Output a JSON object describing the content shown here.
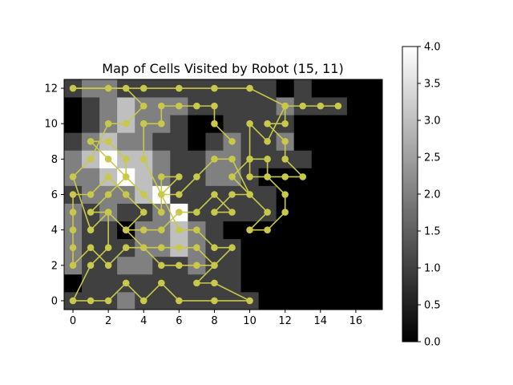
{
  "chart_data": {
    "type": "heatmap",
    "title": "Map of Cells Visited by Robot (15, 11)",
    "xlabel": "",
    "ylabel": "",
    "grid": false,
    "legend": "none",
    "origin": "lower",
    "xlim": [
      -0.5,
      17.5
    ],
    "ylim": [
      -0.5,
      12.5
    ],
    "xticks": [
      0,
      2,
      4,
      6,
      8,
      10,
      12,
      14,
      16
    ],
    "yticks": [
      0,
      2,
      4,
      6,
      8,
      10,
      12
    ],
    "colormap": "gray",
    "colorbar": {
      "range": [
        0.0,
        4.0
      ],
      "ticks": [
        "0.0",
        "0.5",
        "1.0",
        "1.5",
        "2.0",
        "2.5",
        "3.0",
        "3.5",
        "4.0"
      ],
      "position": "right"
    },
    "grid_values": [
      [
        1,
        1,
        1,
        2,
        1,
        1,
        1,
        1,
        1,
        1,
        1,
        0,
        0,
        0,
        0,
        0,
        0,
        0
      ],
      [
        0,
        1,
        1,
        1,
        1,
        1,
        1,
        1,
        1,
        1,
        0,
        0,
        0,
        0,
        0,
        0,
        0,
        0
      ],
      [
        2,
        1,
        1,
        2,
        2,
        1,
        1,
        2,
        1,
        1,
        0,
        0,
        0,
        0,
        0,
        0,
        0,
        0
      ],
      [
        2,
        1,
        1,
        1,
        2,
        2,
        3,
        2,
        1,
        1,
        0,
        0,
        0,
        0,
        0,
        0,
        0,
        0
      ],
      [
        2,
        1,
        1,
        0,
        2,
        2,
        3,
        2,
        1,
        0,
        0,
        0,
        0,
        0,
        0,
        0,
        0,
        0
      ],
      [
        2,
        1,
        2,
        1,
        1,
        2,
        4,
        1,
        1,
        1,
        1,
        1,
        0,
        0,
        0,
        0,
        0,
        0
      ],
      [
        1,
        2,
        2,
        2,
        3,
        4,
        1,
        1,
        1,
        1,
        1,
        1,
        0,
        0,
        0,
        0,
        0,
        0
      ],
      [
        2,
        2,
        3,
        4,
        3,
        2,
        1,
        1,
        2,
        2,
        1,
        0,
        0,
        0,
        0,
        0,
        0,
        0
      ],
      [
        2,
        3,
        4,
        3,
        3,
        2,
        1,
        1,
        2,
        2,
        1,
        1,
        1,
        1,
        0,
        0,
        0,
        0
      ],
      [
        1,
        2,
        3,
        2,
        2,
        1,
        1,
        0,
        1,
        2,
        1,
        1,
        2,
        0,
        0,
        0,
        0,
        0
      ],
      [
        0,
        1,
        2,
        3,
        2,
        2,
        1,
        0,
        0,
        1,
        1,
        1,
        1,
        0,
        0,
        0,
        0,
        0
      ],
      [
        0,
        1,
        2,
        3,
        2,
        2,
        2,
        1,
        1,
        1,
        1,
        1,
        2,
        1,
        1,
        1,
        0,
        0
      ],
      [
        1,
        2,
        2,
        1,
        1,
        1,
        1,
        1,
        1,
        1,
        1,
        1,
        0,
        1,
        0,
        0,
        0,
        0
      ]
    ],
    "path_color": "#c8c84a",
    "path_points": [
      [
        15,
        11
      ],
      [
        14,
        11
      ],
      [
        13,
        11
      ],
      [
        12,
        11
      ],
      [
        12,
        10
      ],
      [
        11,
        10
      ],
      [
        12,
        9
      ],
      [
        12,
        8
      ],
      [
        13,
        7
      ],
      [
        12,
        7
      ],
      [
        11,
        7
      ],
      [
        10,
        7
      ],
      [
        10,
        8
      ],
      [
        9,
        7
      ],
      [
        10,
        6
      ],
      [
        9,
        6
      ],
      [
        8,
        5
      ],
      [
        9,
        5
      ],
      [
        8,
        6
      ],
      [
        7,
        5
      ],
      [
        6,
        5
      ],
      [
        5,
        4
      ],
      [
        4,
        4
      ],
      [
        3,
        4
      ],
      [
        4,
        5
      ],
      [
        3,
        6
      ],
      [
        2,
        7
      ],
      [
        1,
        6
      ],
      [
        0,
        6
      ],
      [
        0,
        5
      ],
      [
        0,
        4
      ],
      [
        0,
        3
      ],
      [
        0,
        2
      ],
      [
        1,
        3
      ],
      [
        2,
        2
      ],
      [
        3,
        3
      ],
      [
        4,
        3
      ],
      [
        5,
        3
      ],
      [
        6,
        3
      ],
      [
        7,
        3
      ],
      [
        8,
        2
      ],
      [
        7,
        1
      ],
      [
        8,
        1
      ],
      [
        10,
        0
      ],
      [
        8,
        0
      ],
      [
        6,
        0
      ],
      [
        5,
        1
      ],
      [
        4,
        0
      ],
      [
        3,
        1
      ],
      [
        2,
        0
      ],
      [
        1,
        0
      ],
      [
        0,
        0
      ],
      [
        1,
        2
      ],
      [
        2,
        3
      ],
      [
        2,
        5
      ],
      [
        1,
        5
      ],
      [
        2,
        6
      ],
      [
        3,
        7
      ],
      [
        3,
        8
      ],
      [
        2,
        9
      ],
      [
        1,
        9
      ],
      [
        2,
        8
      ],
      [
        3,
        7
      ],
      [
        4,
        6
      ],
      [
        5,
        5
      ],
      [
        5,
        7
      ],
      [
        6,
        7
      ],
      [
        5,
        6
      ],
      [
        6,
        4
      ],
      [
        7,
        4
      ],
      [
        8,
        3
      ],
      [
        9,
        3
      ],
      [
        8,
        2
      ],
      [
        7,
        2
      ],
      [
        6,
        2
      ],
      [
        5,
        2
      ],
      [
        4,
        3
      ],
      [
        3,
        4
      ],
      [
        2,
        5
      ],
      [
        1,
        4
      ],
      [
        0,
        7
      ],
      [
        1,
        8
      ],
      [
        2,
        10
      ],
      [
        3,
        10
      ],
      [
        4,
        11
      ],
      [
        3,
        12
      ],
      [
        2,
        12
      ],
      [
        0,
        12
      ],
      [
        4,
        12
      ],
      [
        6,
        12
      ],
      [
        8,
        12
      ],
      [
        10,
        12
      ],
      [
        12,
        11
      ],
      [
        11,
        9
      ],
      [
        10,
        10
      ],
      [
        10,
        8
      ],
      [
        11,
        8
      ],
      [
        11,
        7
      ],
      [
        12,
        6
      ],
      [
        12,
        5
      ],
      [
        11,
        4
      ],
      [
        10,
        4
      ],
      [
        11,
        5
      ],
      [
        10,
        6
      ],
      [
        9,
        8
      ],
      [
        8,
        8
      ],
      [
        7,
        7
      ],
      [
        6,
        6
      ],
      [
        5,
        6
      ],
      [
        4,
        8
      ],
      [
        4,
        10
      ],
      [
        5,
        10
      ],
      [
        5,
        11
      ],
      [
        6,
        11
      ],
      [
        7,
        11
      ],
      [
        8,
        11
      ],
      [
        8,
        10
      ],
      [
        9,
        9
      ]
    ]
  }
}
